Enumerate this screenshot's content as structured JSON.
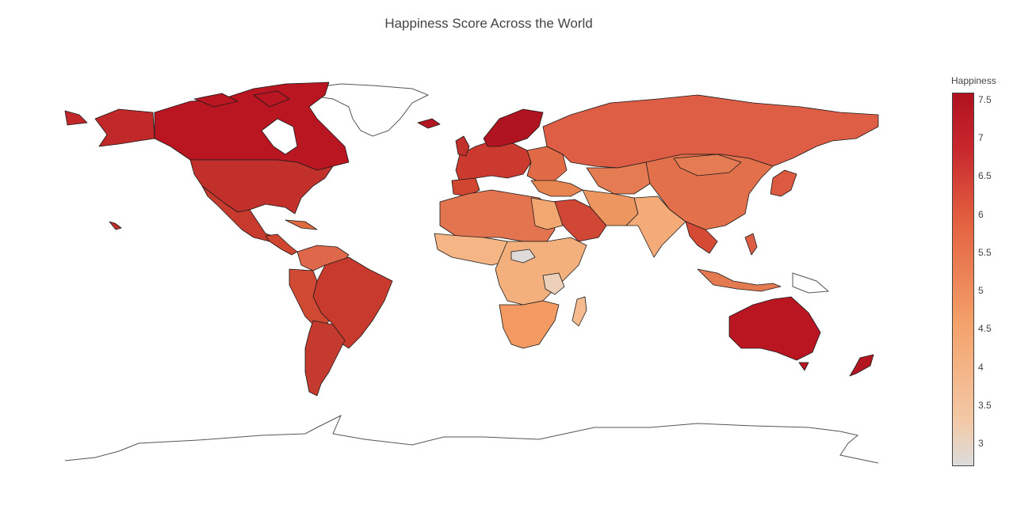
{
  "title": "Happiness Score Across the World",
  "colorbar": {
    "title": "Happiness",
    "ticks": [
      "7.5",
      "7",
      "6.5",
      "6",
      "5.5",
      "5",
      "4.5",
      "4",
      "3.5",
      "3"
    ],
    "range": [
      2.7,
      7.6
    ],
    "colors": {
      "low": "#dcdcdc",
      "mid_low": "#f3c9a7",
      "mid": "#f4a26b",
      "mid_high": "#e2603f",
      "high": "#b0121f"
    }
  },
  "regions": {
    "no_data_color": "#ffffff",
    "border_color": "#1a1a1a"
  }
}
